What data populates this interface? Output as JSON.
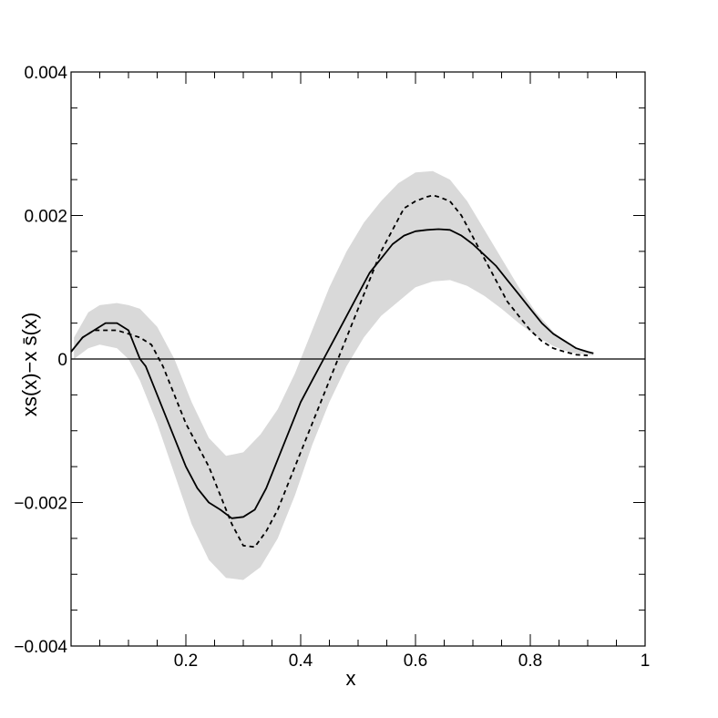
{
  "chart_data": {
    "type": "line",
    "title": "",
    "xlabel": "x",
    "ylabel": "xs(x)−x s̄(x)",
    "xlim": [
      0,
      1
    ],
    "ylim": [
      -0.004,
      0.004
    ],
    "grid": false,
    "legend": "none",
    "x_ticks": [
      {
        "value": 0.2,
        "label": "0.2"
      },
      {
        "value": 0.4,
        "label": "0.4"
      },
      {
        "value": 0.6,
        "label": "0.6"
      },
      {
        "value": 0.8,
        "label": "0.8"
      },
      {
        "value": 1.0,
        "label": "1"
      }
    ],
    "y_ticks": [
      {
        "value": 0.004,
        "label": "0.004"
      },
      {
        "value": 0.002,
        "label": "0.002"
      },
      {
        "value": 0,
        "label": "0"
      },
      {
        "value": -0.002,
        "label": "−0.002"
      },
      {
        "value": -0.004,
        "label": "−0.004"
      }
    ],
    "band": {
      "color": "#d9d9d9",
      "x": [
        0.005,
        0.03,
        0.05,
        0.08,
        0.1,
        0.12,
        0.15,
        0.18,
        0.21,
        0.24,
        0.27,
        0.3,
        0.33,
        0.36,
        0.39,
        0.42,
        0.45,
        0.48,
        0.51,
        0.54,
        0.57,
        0.6,
        0.63,
        0.66,
        0.69,
        0.72,
        0.75,
        0.78,
        0.81,
        0.84,
        0.87,
        0.9,
        0.91
      ],
      "upper": [
        0.0003,
        0.00065,
        0.00075,
        0.00078,
        0.00075,
        0.0007,
        0.00045,
        0.0,
        -0.0006,
        -0.0011,
        -0.00135,
        -0.0013,
        -0.00105,
        -0.0007,
        -0.0002,
        0.0004,
        0.001,
        0.0015,
        0.0019,
        0.0022,
        0.00245,
        0.0026,
        0.00262,
        0.0025,
        0.0022,
        0.0018,
        0.0014,
        0.001,
        0.00065,
        0.00038,
        0.00018,
        0.0001,
        9e-05
      ],
      "lower": [
        0.0,
        0.00015,
        0.0002,
        0.00015,
        0.0,
        -0.0003,
        -0.0009,
        -0.0016,
        -0.0023,
        -0.0028,
        -0.00305,
        -0.00308,
        -0.0029,
        -0.0025,
        -0.0019,
        -0.0012,
        -0.0006,
        -0.0001,
        0.0003,
        0.0006,
        0.0008,
        0.001,
        0.00108,
        0.0011,
        0.00102,
        0.00088,
        0.0007,
        0.0005,
        0.00032,
        0.00018,
        9e-05,
        6e-05,
        5e-05
      ]
    },
    "series": [
      {
        "style": "solid",
        "color": "#000000",
        "x": [
          0.0,
          0.02,
          0.04,
          0.06,
          0.08,
          0.1,
          0.11,
          0.12,
          0.13,
          0.14,
          0.16,
          0.18,
          0.2,
          0.22,
          0.24,
          0.26,
          0.28,
          0.3,
          0.32,
          0.34,
          0.36,
          0.38,
          0.4,
          0.42,
          0.44,
          0.46,
          0.48,
          0.5,
          0.52,
          0.54,
          0.56,
          0.58,
          0.6,
          0.62,
          0.64,
          0.66,
          0.68,
          0.7,
          0.72,
          0.74,
          0.76,
          0.78,
          0.8,
          0.82,
          0.84,
          0.86,
          0.88,
          0.9,
          0.91
        ],
        "y": [
          0.0001,
          0.0003,
          0.0004,
          0.0005,
          0.0005,
          0.0004,
          0.0002,
          0.0,
          -0.0001,
          -0.0003,
          -0.0007,
          -0.0011,
          -0.0015,
          -0.0018,
          -0.002,
          -0.0021,
          -0.00222,
          -0.0022,
          -0.0021,
          -0.0018,
          -0.0014,
          -0.001,
          -0.0006,
          -0.0003,
          0.0,
          0.0003,
          0.0006,
          0.0009,
          0.0012,
          0.0014,
          0.0016,
          0.00172,
          0.00178,
          0.0018,
          0.00181,
          0.0018,
          0.00172,
          0.0016,
          0.00145,
          0.0013,
          0.0011,
          0.0009,
          0.0007,
          0.0005,
          0.00035,
          0.00025,
          0.00015,
          0.0001,
          8e-05
        ]
      },
      {
        "style": "dashed",
        "color": "#000000",
        "x": [
          0.0,
          0.02,
          0.04,
          0.06,
          0.08,
          0.1,
          0.12,
          0.14,
          0.16,
          0.18,
          0.2,
          0.22,
          0.24,
          0.26,
          0.28,
          0.3,
          0.32,
          0.34,
          0.36,
          0.38,
          0.4,
          0.42,
          0.44,
          0.46,
          0.48,
          0.5,
          0.52,
          0.54,
          0.56,
          0.58,
          0.6,
          0.62,
          0.63,
          0.64,
          0.66,
          0.68,
          0.7,
          0.72,
          0.74,
          0.76,
          0.78,
          0.8,
          0.82,
          0.84,
          0.86,
          0.88,
          0.9
        ],
        "y": [
          0.0001,
          0.0003,
          0.0004,
          0.0004,
          0.0004,
          0.00035,
          0.0003,
          0.0002,
          -0.0001,
          -0.0005,
          -0.0009,
          -0.0012,
          -0.0015,
          -0.0019,
          -0.0023,
          -0.0026,
          -0.00262,
          -0.0024,
          -0.0021,
          -0.0017,
          -0.0013,
          -0.0009,
          -0.0005,
          -0.0001,
          0.0003,
          0.0007,
          0.0011,
          0.0015,
          0.0018,
          0.0021,
          0.0022,
          0.00226,
          0.00228,
          0.00226,
          0.0022,
          0.002,
          0.0017,
          0.0014,
          0.0011,
          0.0008,
          0.0006,
          0.0004,
          0.00025,
          0.00015,
          0.0001,
          6e-05,
          5e-05
        ]
      }
    ],
    "reference_line": {
      "y": 0,
      "color": "#000000"
    }
  }
}
